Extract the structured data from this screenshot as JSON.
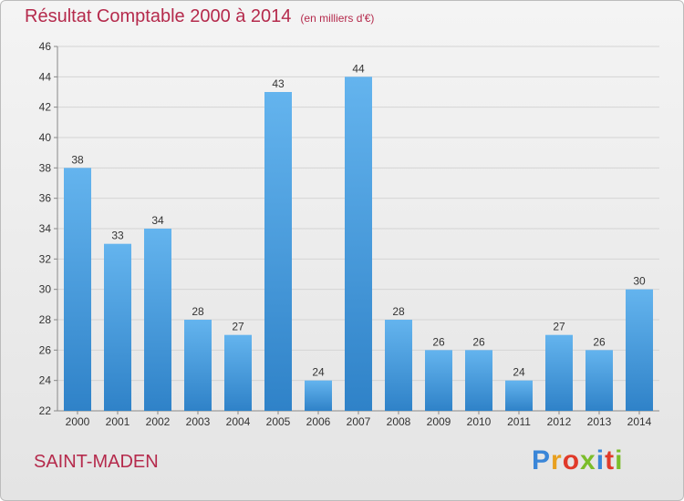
{
  "header": {
    "title": "Résultat Comptable 2000 à 2014",
    "subtitle": "(en milliers d'€)"
  },
  "footer": {
    "place": "SAINT-MADEN",
    "logo": "Proxiti",
    "logo_colors": [
      "#3a86d8",
      "#e8a020",
      "#e03a2a",
      "#7bbd2a",
      "#3a86d8",
      "#e03a2a",
      "#7bbd2a"
    ]
  },
  "chart_data": {
    "type": "bar",
    "title": "Résultat Comptable 2000 à 2014",
    "categories": [
      "2000",
      "2001",
      "2002",
      "2003",
      "2004",
      "2005",
      "2006",
      "2007",
      "2008",
      "2009",
      "2010",
      "2011",
      "2012",
      "2013",
      "2014"
    ],
    "values": [
      38,
      33,
      34,
      28,
      27,
      43,
      24,
      44,
      28,
      26,
      26,
      24,
      27,
      26,
      30
    ],
    "ylim": [
      22,
      46
    ],
    "yticks": [
      22,
      24,
      26,
      28,
      30,
      32,
      34,
      36,
      38,
      40,
      42,
      44,
      46
    ],
    "grid": true,
    "bar_color": "#4a9fe0",
    "bar_color_light": "#64b4ee",
    "bar_color_dark": "#2f82c8"
  }
}
